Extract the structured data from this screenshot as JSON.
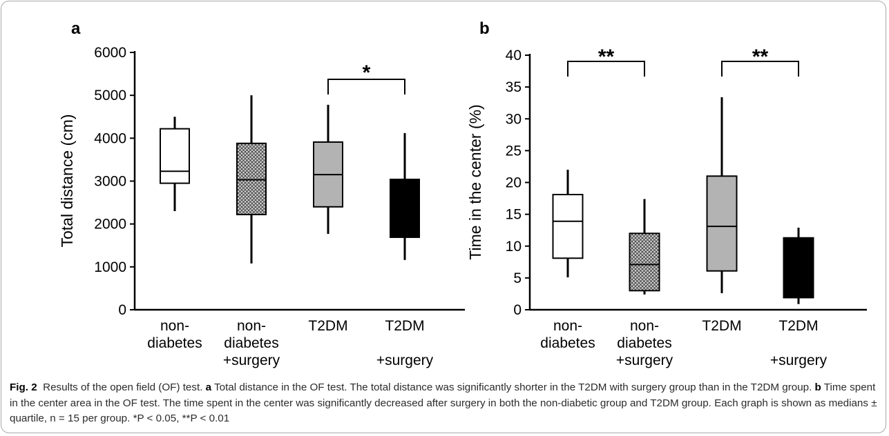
{
  "chart_data": [
    {
      "panel": "a",
      "type": "boxplot",
      "ylabel": "Total distance (cm)",
      "ylim": [
        0,
        6000
      ],
      "yticks": [
        "0",
        "1000",
        "2000",
        "3000",
        "4000",
        "5000",
        "6000"
      ],
      "categories": [
        {
          "lines": [
            "non-",
            "diabetes"
          ]
        },
        {
          "lines": [
            "non-",
            "diabetes",
            "+surgery"
          ]
        },
        {
          "lines": [
            "T2DM"
          ]
        },
        {
          "lines": [
            "T2DM",
            "",
            "+surgery"
          ]
        }
      ],
      "boxes": [
        {
          "min": 2300,
          "q1": 2950,
          "median": 3230,
          "q3": 4220,
          "max": 4500,
          "fill": "white"
        },
        {
          "min": 1080,
          "q1": 2220,
          "median": 3030,
          "q3": 3880,
          "max": 5000,
          "fill": "crosshatch"
        },
        {
          "min": 1770,
          "q1": 2400,
          "median": 3150,
          "q3": 3910,
          "max": 4780,
          "fill": "gray"
        },
        {
          "min": 1160,
          "q1": 1690,
          "median": 3040,
          "q3": 3040,
          "max": 4120,
          "fill": "black"
        }
      ],
      "significance": [
        {
          "from": 2,
          "to": 3,
          "label": "*"
        }
      ]
    },
    {
      "panel": "b",
      "type": "boxplot",
      "ylabel": "Time in the center (%)",
      "ylim": [
        0,
        40
      ],
      "yticks": [
        "0",
        "5",
        "10",
        "15",
        "20",
        "25",
        "30",
        "35",
        "40"
      ],
      "categories": [
        {
          "lines": [
            "non-",
            "diabetes"
          ]
        },
        {
          "lines": [
            "non-",
            "diabetes",
            "+surgery"
          ]
        },
        {
          "lines": [
            "T2DM"
          ]
        },
        {
          "lines": [
            "T2DM",
            "",
            "+surgery"
          ]
        }
      ],
      "boxes": [
        {
          "min": 5.1,
          "q1": 8.1,
          "median": 13.9,
          "q3": 18.1,
          "max": 22.0,
          "fill": "white"
        },
        {
          "min": 2.4,
          "q1": 3.0,
          "median": 7.1,
          "q3": 12.0,
          "max": 17.4,
          "fill": "crosshatch"
        },
        {
          "min": 2.6,
          "q1": 6.1,
          "median": 13.1,
          "q3": 21.0,
          "max": 33.4,
          "fill": "gray"
        },
        {
          "min": 0.9,
          "q1": 1.9,
          "median": 11.3,
          "q3": 11.3,
          "max": 12.9,
          "fill": "black"
        }
      ],
      "significance": [
        {
          "from": 0,
          "to": 1,
          "label": "**"
        },
        {
          "from": 2,
          "to": 3,
          "label": "**"
        }
      ]
    }
  ],
  "caption": {
    "fig_label": "Fig. 2",
    "text_1": "Results of the open field (OF) test. ",
    "letter_a": "a",
    "text_2": " Total distance in the OF test. The total distance was significantly shorter in the T2DM with surgery group than in the T2DM group. ",
    "letter_b": "b",
    "text_3": " Time spent in the center area in the OF test. The time spent in the center was significantly decreased after surgery in both the non-diabetic group and T2DM group. Each graph is shown as medians ± quartile, n = 15 per group. *P < 0.05, **P < 0.01"
  },
  "colors": {
    "gray_box": "#b3b3b3",
    "black_box": "#000000",
    "white_box": "#ffffff",
    "frame_border": "#a8a8a8"
  }
}
